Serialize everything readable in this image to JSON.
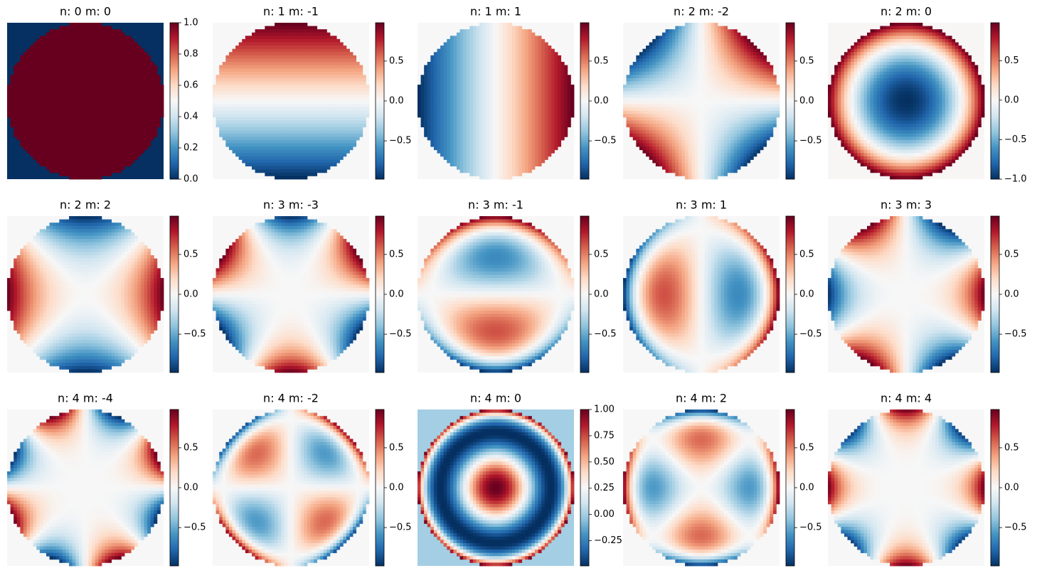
{
  "chart_data": [
    {
      "type": "heatmap",
      "title": "n: 0 m: 0",
      "n": 0,
      "m": 0,
      "clim": [
        0,
        1
      ],
      "cticks": [
        {
          "value": 0,
          "label": "0.0"
        },
        {
          "value": 0.2,
          "label": "0.2"
        },
        {
          "value": 0.4,
          "label": "0.4"
        },
        {
          "value": 0.6,
          "label": "0.6"
        },
        {
          "value": 0.8,
          "label": "0.8"
        },
        {
          "value": 1,
          "label": "1.0"
        }
      ]
    },
    {
      "type": "heatmap",
      "title": "n: 1 m: -1",
      "n": 1,
      "m": -1,
      "clim": [
        -0.98,
        0.98
      ],
      "cticks": [
        {
          "value": -0.5,
          "label": "−0.5"
        },
        {
          "value": 0,
          "label": "0.0"
        },
        0.5
      ]
    },
    {
      "type": "heatmap",
      "title": "n: 1 m: 1",
      "n": 1,
      "m": 1,
      "clim": [
        -0.98,
        0.98
      ],
      "cticks": [
        {
          "value": -0.5,
          "label": "−0.5"
        },
        {
          "value": 0,
          "label": "0.0"
        },
        0.5
      ]
    },
    {
      "type": "heatmap",
      "title": "n: 2 m: -2",
      "n": 2,
      "m": -2,
      "clim": [
        -0.98,
        0.98
      ],
      "cticks": [
        {
          "value": -0.5,
          "label": "−0.5"
        },
        {
          "value": 0,
          "label": "0.0"
        },
        0.5
      ]
    },
    {
      "type": "heatmap",
      "title": "n: 2 m: 0",
      "n": 2,
      "m": 0,
      "clim": [
        -1,
        0.98
      ],
      "cticks": [
        {
          "value": -1,
          "label": "−1.0"
        },
        {
          "value": -0.5,
          "label": "−0.5"
        },
        {
          "value": 0,
          "label": "0.0"
        },
        0.5
      ]
    },
    {
      "type": "heatmap",
      "title": "n: 2 m: 2",
      "n": 2,
      "m": 2,
      "clim": [
        -0.98,
        0.98
      ],
      "cticks": [
        {
          "value": -0.5,
          "label": "−0.5"
        },
        {
          "value": 0,
          "label": "0.0"
        },
        0.5
      ]
    },
    {
      "type": "heatmap",
      "title": "n: 3 m: -3",
      "n": 3,
      "m": -3,
      "clim": [
        -0.98,
        0.98
      ],
      "cticks": [
        {
          "value": -0.5,
          "label": "−0.5"
        },
        {
          "value": 0,
          "label": "0.0"
        },
        0.5
      ]
    },
    {
      "type": "heatmap",
      "title": "n: 3 m: -1",
      "n": 3,
      "m": -1,
      "clim": [
        -0.98,
        0.98
      ],
      "cticks": [
        {
          "value": -0.5,
          "label": "−0.5"
        },
        {
          "value": 0,
          "label": "0.0"
        },
        0.5
      ]
    },
    {
      "type": "heatmap",
      "title": "n: 3 m: 1",
      "n": 3,
      "m": 1,
      "clim": [
        -0.98,
        0.98
      ],
      "cticks": [
        {
          "value": -0.5,
          "label": "−0.5"
        },
        {
          "value": 0,
          "label": "0.0"
        },
        0.5
      ]
    },
    {
      "type": "heatmap",
      "title": "n: 3 m: 3",
      "n": 3,
      "m": 3,
      "clim": [
        -0.98,
        0.98
      ],
      "cticks": [
        {
          "value": -0.5,
          "label": "−0.5"
        },
        {
          "value": 0,
          "label": "0.0"
        },
        0.5
      ]
    },
    {
      "type": "heatmap",
      "title": "n: 4 m: -4",
      "n": 4,
      "m": -4,
      "clim": [
        -0.98,
        0.98
      ],
      "cticks": [
        {
          "value": -0.5,
          "label": "−0.5"
        },
        {
          "value": 0,
          "label": "0.0"
        },
        0.5
      ]
    },
    {
      "type": "heatmap",
      "title": "n: 4 m: -2",
      "n": 4,
      "m": -2,
      "clim": [
        -0.98,
        0.98
      ],
      "cticks": [
        {
          "value": -0.5,
          "label": "−0.5"
        },
        {
          "value": 0,
          "label": "0.0"
        },
        0.5
      ]
    },
    {
      "type": "heatmap",
      "title": "n: 4 m: 0",
      "n": 4,
      "m": 0,
      "clim": [
        -0.49,
        1
      ],
      "cticks": [
        {
          "value": -0.25,
          "label": "−0.25"
        },
        {
          "value": 0,
          "label": "0.00"
        },
        0.25,
        {
          "value": 0.5,
          "label": "0.50"
        },
        0.75,
        {
          "value": 1,
          "label": "1.00"
        }
      ]
    },
    {
      "type": "heatmap",
      "title": "n: 4 m: 2",
      "n": 4,
      "m": 2,
      "clim": [
        -0.98,
        0.98
      ],
      "cticks": [
        {
          "value": -0.5,
          "label": "−0.5"
        },
        {
          "value": 0,
          "label": "0.0"
        },
        0.5
      ]
    },
    {
      "type": "heatmap",
      "title": "n: 4 m: 4",
      "n": 4,
      "m": 4,
      "clim": [
        -0.98,
        0.98
      ],
      "cticks": [
        {
          "value": -0.5,
          "label": "−0.5"
        },
        {
          "value": 0,
          "label": "0.0"
        },
        0.5
      ]
    }
  ]
}
